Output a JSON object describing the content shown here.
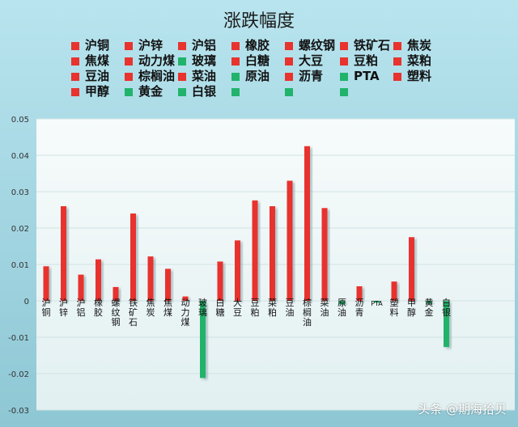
{
  "chart_data": {
    "type": "bar",
    "title": "涨跌幅度",
    "categories": [
      "沪铜",
      "沪锌",
      "沪铝",
      "橡胶",
      "螺纹钢",
      "铁矿石",
      "焦炭",
      "焦煤",
      "动力煤",
      "玻璃",
      "白糖",
      "大豆",
      "豆粕",
      "菜粕",
      "豆油",
      "棕榈油",
      "菜油",
      "原油",
      "沥青",
      "PTA",
      "塑料",
      "甲醇",
      "黄金",
      "白银"
    ],
    "values": [
      0.0095,
      0.026,
      0.0072,
      0.0114,
      0.0038,
      0.024,
      0.0122,
      0.0088,
      0.0012,
      -0.0212,
      0.0108,
      0.0166,
      0.0276,
      0.026,
      0.033,
      0.0425,
      0.0255,
      -0.001,
      0.004,
      -0.0005,
      0.0053,
      0.0175,
      -0.0008,
      -0.0127
    ],
    "ylim": [
      -0.03,
      0.05
    ],
    "yticks": [
      "-0.03",
      "-0.02",
      "-0.01",
      "0",
      "0.01",
      "0.02",
      "0.03",
      "0.04",
      "0.05"
    ],
    "xlabel": "",
    "ylabel": "",
    "grid": true,
    "legend_position": "top",
    "colors": {
      "up": "#e8332e",
      "down": "#22b36b"
    }
  },
  "legend": {
    "items": [
      {
        "label": "沪铜",
        "color": "#e8332e"
      },
      {
        "label": "沪锌",
        "color": "#e8332e"
      },
      {
        "label": "沪铝",
        "color": "#e8332e"
      },
      {
        "label": "橡胶",
        "color": "#e8332e"
      },
      {
        "label": "螺纹钢",
        "color": "#e8332e"
      },
      {
        "label": "铁矿石",
        "color": "#e8332e"
      },
      {
        "label": "焦炭",
        "color": "#e8332e"
      },
      {
        "label": "焦煤",
        "color": "#e8332e"
      },
      {
        "label": "动力煤",
        "color": "#e8332e"
      },
      {
        "label": "玻璃",
        "color": "#22b36b"
      },
      {
        "label": "白糖",
        "color": "#e8332e"
      },
      {
        "label": "大豆",
        "color": "#e8332e"
      },
      {
        "label": "豆粕",
        "color": "#e8332e"
      },
      {
        "label": "菜粕",
        "color": "#e8332e"
      },
      {
        "label": "豆油",
        "color": "#e8332e"
      },
      {
        "label": "棕榈油",
        "color": "#e8332e"
      },
      {
        "label": "菜油",
        "color": "#e8332e"
      },
      {
        "label": "原油",
        "color": "#22b36b"
      },
      {
        "label": "沥青",
        "color": "#e8332e"
      },
      {
        "label": "PTA",
        "color": "#22b36b"
      },
      {
        "label": "塑料",
        "color": "#e8332e"
      },
      {
        "label": "甲醇",
        "color": "#e8332e"
      },
      {
        "label": "黄金",
        "color": "#22b36b"
      },
      {
        "label": "白银",
        "color": "#22b36b"
      },
      {
        "label": "",
        "color": "#22b36b"
      },
      {
        "label": "",
        "color": "#22b36b"
      },
      {
        "label": "",
        "color": "#22b36b"
      }
    ]
  },
  "watermark": "头条 @期海拾贝"
}
